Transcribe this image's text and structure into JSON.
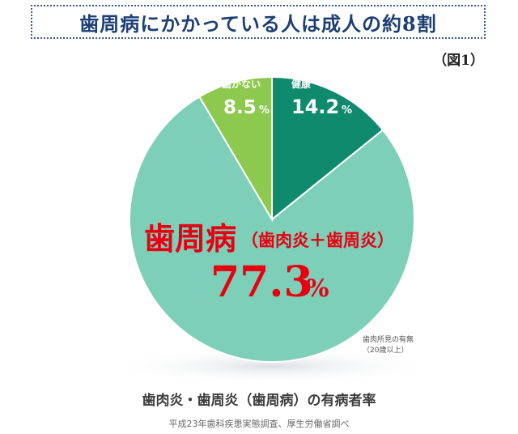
{
  "header": {
    "title": "歯周病にかかっている人は成人の約8割",
    "figure_label": "（図1）"
  },
  "chart_data": {
    "type": "pie",
    "categories": [
      "健康",
      "歯周病",
      "歯がない"
    ],
    "values": [
      14.2,
      77.3,
      8.5
    ],
    "value_labels": [
      "14.2",
      "77.3",
      "8.5"
    ],
    "percent_sign": "%",
    "main_label": "歯周病",
    "main_label_detail": "（歯肉炎＋歯周炎）",
    "colors": [
      "#0f8a6c",
      "#7ecfb7",
      "#8cc94e"
    ],
    "note_line1": "歯肉所見の有無",
    "note_line2": "（20歳以上）",
    "caption": "歯肉炎・歯周炎（歯周病）の有病者率",
    "source": "平成23年歯科疾患実態調査、厚生労働省調べ"
  }
}
